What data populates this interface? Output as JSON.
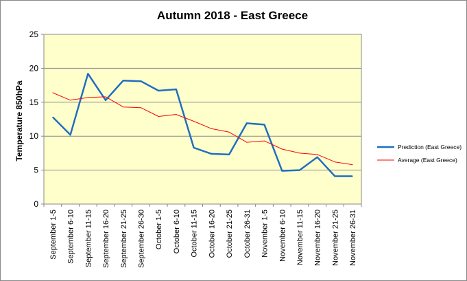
{
  "chart_data": {
    "type": "line",
    "title": "Autumn 2018 - East Greece",
    "xlabel": "",
    "ylabel": "Temperature 850hPa",
    "ylim": [
      0,
      25
    ],
    "yticks": [
      0,
      5,
      10,
      15,
      20,
      25
    ],
    "grid": true,
    "legend_position": "right",
    "plot_background": "#ffffcc",
    "categories": [
      "September 1-5",
      "September 6-10",
      "September 11-15",
      "September 16-20",
      "September 21-25",
      "September 26-30",
      "October 1-5",
      "October 6-10",
      "October 11-15",
      "October 16-20",
      "October 21-25",
      "October 26-31",
      "November 1-5",
      "November 6-10",
      "November 11-15",
      "November 16-20",
      "November 21-25",
      "November 26-31"
    ],
    "series": [
      {
        "name": "Prediction (East Greece)",
        "color": "#1f6fbf",
        "values": [
          12.8,
          10.2,
          19.2,
          15.3,
          18.2,
          18.1,
          16.7,
          16.9,
          8.3,
          7.4,
          7.3,
          11.9,
          11.7,
          4.9,
          5.0,
          6.9,
          4.1,
          4.1
        ]
      },
      {
        "name": "Average (East Greece)",
        "color": "#ff0000",
        "values": [
          16.4,
          15.3,
          15.7,
          15.8,
          14.3,
          14.2,
          12.9,
          13.2,
          12.2,
          11.1,
          10.6,
          9.1,
          9.3,
          8.1,
          7.5,
          7.3,
          6.2,
          5.8
        ]
      }
    ]
  }
}
